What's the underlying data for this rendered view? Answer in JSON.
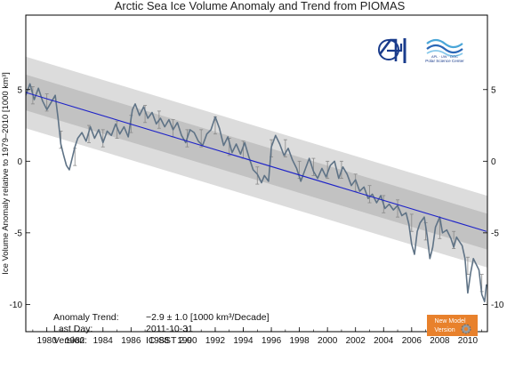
{
  "chart_data": {
    "type": "line",
    "title": "Arctic Sea Ice Volume Anomaly and Trend from PIOMAS",
    "ylabel": "Ice Volume Anomaly relative to 1979–2010 [1000 km³]",
    "xlabel": "",
    "xlim": [
      1979.0,
      2011.9
    ],
    "ylim": [
      -11.9,
      10.2
    ],
    "x_ticks": [
      1980,
      1982,
      1984,
      1986,
      1988,
      1990,
      1992,
      1994,
      1996,
      1998,
      2000,
      2002,
      2004,
      2006,
      2008,
      2010
    ],
    "y_ticks_left": [
      5,
      0,
      -5,
      -10
    ],
    "y_ticks_right": [
      5,
      0,
      -5,
      -10
    ],
    "grid": false,
    "trend": {
      "x": [
        1979.0,
        2011.83
      ],
      "y": [
        4.8,
        -4.9
      ]
    },
    "bands": [
      {
        "name": "outer",
        "offset": 2.5
      },
      {
        "name": "inner",
        "offset": 1.25
      }
    ],
    "series": [
      {
        "values": [
          [
            1979.0,
            4.6
          ],
          [
            1979.3,
            5.4
          ],
          [
            1979.6,
            4.3
          ],
          [
            1979.9,
            5.1
          ],
          [
            1980.2,
            4.2
          ],
          [
            1980.5,
            3.6
          ],
          [
            1980.8,
            4.1
          ],
          [
            1981.1,
            4.6
          ],
          [
            1981.3,
            3.0
          ],
          [
            1981.5,
            1.2
          ],
          [
            1981.7,
            0.4
          ],
          [
            1981.9,
            -0.3
          ],
          [
            1982.1,
            -0.6
          ],
          [
            1982.3,
            0.2
          ],
          [
            1982.5,
            1.0
          ],
          [
            1982.7,
            1.6
          ],
          [
            1983.0,
            2.0
          ],
          [
            1983.3,
            1.4
          ],
          [
            1983.6,
            2.4
          ],
          [
            1983.9,
            1.6
          ],
          [
            1984.2,
            2.2
          ],
          [
            1984.5,
            1.3
          ],
          [
            1984.8,
            2.1
          ],
          [
            1985.1,
            1.8
          ],
          [
            1985.4,
            2.6
          ],
          [
            1985.7,
            1.9
          ],
          [
            1986.0,
            2.4
          ],
          [
            1986.3,
            1.7
          ],
          [
            1986.6,
            3.6
          ],
          [
            1986.8,
            4.0
          ],
          [
            1987.1,
            3.2
          ],
          [
            1987.4,
            3.8
          ],
          [
            1987.7,
            3.0
          ],
          [
            1988.0,
            3.4
          ],
          [
            1988.3,
            2.6
          ],
          [
            1988.6,
            3.0
          ],
          [
            1988.9,
            2.4
          ],
          [
            1989.2,
            2.9
          ],
          [
            1989.5,
            2.2
          ],
          [
            1989.8,
            2.7
          ],
          [
            1990.1,
            1.8
          ],
          [
            1990.4,
            1.3
          ],
          [
            1990.7,
            2.2
          ],
          [
            1991.0,
            2.0
          ],
          [
            1991.3,
            1.4
          ],
          [
            1991.6,
            1.1
          ],
          [
            1991.9,
            1.9
          ],
          [
            1992.2,
            2.2
          ],
          [
            1992.5,
            3.1
          ],
          [
            1992.8,
            2.3
          ],
          [
            1993.1,
            1.1
          ],
          [
            1993.4,
            1.7
          ],
          [
            1993.7,
            0.6
          ],
          [
            1994.0,
            1.2
          ],
          [
            1994.3,
            0.5
          ],
          [
            1994.6,
            1.3
          ],
          [
            1994.9,
            0.3
          ],
          [
            1995.2,
            -0.6
          ],
          [
            1995.5,
            -0.9
          ],
          [
            1995.8,
            -1.5
          ],
          [
            1996.0,
            -1.0
          ],
          [
            1996.3,
            -1.4
          ],
          [
            1996.5,
            1.0
          ],
          [
            1996.8,
            1.8
          ],
          [
            1997.1,
            1.2
          ],
          [
            1997.4,
            0.4
          ],
          [
            1997.7,
            0.9
          ],
          [
            1998.0,
            0.1
          ],
          [
            1998.3,
            -0.5
          ],
          [
            1998.6,
            -1.4
          ],
          [
            1998.9,
            -0.6
          ],
          [
            1999.2,
            0.2
          ],
          [
            1999.5,
            -0.7
          ],
          [
            1999.8,
            -1.2
          ],
          [
            2000.1,
            -0.5
          ],
          [
            2000.4,
            -1.1
          ],
          [
            2000.7,
            -0.3
          ],
          [
            2001.0,
            0.0
          ],
          [
            2001.3,
            -1.2
          ],
          [
            2001.6,
            -0.4
          ],
          [
            2001.9,
            -0.9
          ],
          [
            2002.2,
            -1.7
          ],
          [
            2002.5,
            -1.3
          ],
          [
            2002.8,
            -2.1
          ],
          [
            2003.1,
            -1.8
          ],
          [
            2003.4,
            -2.6
          ],
          [
            2003.7,
            -2.3
          ],
          [
            2004.0,
            -2.9
          ],
          [
            2004.3,
            -2.4
          ],
          [
            2004.6,
            -3.3
          ],
          [
            2004.9,
            -3.0
          ],
          [
            2005.2,
            -3.4
          ],
          [
            2005.5,
            -3.1
          ],
          [
            2005.8,
            -3.8
          ],
          [
            2006.1,
            -3.6
          ],
          [
            2006.3,
            -4.4
          ],
          [
            2006.5,
            -5.8
          ],
          [
            2006.7,
            -6.5
          ],
          [
            2006.9,
            -4.9
          ],
          [
            2007.1,
            -4.3
          ],
          [
            2007.4,
            -3.9
          ],
          [
            2007.6,
            -5.2
          ],
          [
            2007.8,
            -6.8
          ],
          [
            2008.0,
            -6.0
          ],
          [
            2008.2,
            -4.6
          ],
          [
            2008.5,
            -3.9
          ],
          [
            2008.7,
            -5.0
          ],
          [
            2009.0,
            -4.8
          ],
          [
            2009.3,
            -5.4
          ],
          [
            2009.5,
            -6.0
          ],
          [
            2009.7,
            -5.3
          ],
          [
            2009.9,
            -5.6
          ],
          [
            2010.1,
            -5.9
          ],
          [
            2010.3,
            -6.8
          ],
          [
            2010.5,
            -9.2
          ],
          [
            2010.7,
            -7.8
          ],
          [
            2010.9,
            -6.8
          ],
          [
            2011.1,
            -7.2
          ],
          [
            2011.3,
            -7.6
          ],
          [
            2011.5,
            -9.3
          ],
          [
            2011.7,
            -9.8
          ],
          [
            2011.83,
            -8.6
          ]
        ]
      }
    ],
    "error_bars": [
      {
        "x": 1979.5,
        "y": 4.6,
        "err": 0.6
      },
      {
        "x": 1980.5,
        "y": 4.1,
        "err": 0.6
      },
      {
        "x": 1981.5,
        "y": 1.5,
        "err": 0.6
      },
      {
        "x": 1982.5,
        "y": 0.3,
        "err": 0.6
      },
      {
        "x": 1983.5,
        "y": 1.9,
        "err": 0.6
      },
      {
        "x": 1984.5,
        "y": 1.6,
        "err": 0.6
      },
      {
        "x": 1985.5,
        "y": 2.2,
        "err": 0.6
      },
      {
        "x": 1986.5,
        "y": 2.6,
        "err": 0.6
      },
      {
        "x": 1987.5,
        "y": 3.3,
        "err": 0.6
      },
      {
        "x": 1988.5,
        "y": 2.9,
        "err": 0.6
      },
      {
        "x": 1989.5,
        "y": 2.3,
        "err": 0.6
      },
      {
        "x": 1990.5,
        "y": 1.6,
        "err": 0.6
      },
      {
        "x": 1991.5,
        "y": 1.6,
        "err": 0.6
      },
      {
        "x": 1992.5,
        "y": 2.5,
        "err": 0.6
      },
      {
        "x": 1993.5,
        "y": 1.0,
        "err": 0.6
      },
      {
        "x": 1994.5,
        "y": 0.8,
        "err": 0.6
      },
      {
        "x": 1995.5,
        "y": -1.0,
        "err": 0.6
      },
      {
        "x": 1996.5,
        "y": 0.9,
        "err": 0.6
      },
      {
        "x": 1997.5,
        "y": 0.9,
        "err": 0.6
      },
      {
        "x": 1998.5,
        "y": -0.6,
        "err": 0.6
      },
      {
        "x": 1999.5,
        "y": -0.4,
        "err": 0.6
      },
      {
        "x": 2000.5,
        "y": -0.6,
        "err": 0.6
      },
      {
        "x": 2001.5,
        "y": -0.6,
        "err": 0.6
      },
      {
        "x": 2002.5,
        "y": -1.5,
        "err": 0.6
      },
      {
        "x": 2003.5,
        "y": -2.3,
        "err": 0.6
      },
      {
        "x": 2004.5,
        "y": -3.0,
        "err": 0.6
      },
      {
        "x": 2005.5,
        "y": -3.3,
        "err": 0.6
      },
      {
        "x": 2006.5,
        "y": -4.3,
        "err": 0.6
      },
      {
        "x": 2007.5,
        "y": -4.9,
        "err": 0.6
      },
      {
        "x": 2008.5,
        "y": -4.8,
        "err": 0.6
      },
      {
        "x": 2009.5,
        "y": -5.5,
        "err": 0.6
      },
      {
        "x": 2010.5,
        "y": -7.3,
        "err": 0.6
      },
      {
        "x": 2011.5,
        "y": -8.5,
        "err": 0.6
      }
    ],
    "colors": {
      "outer_band": "#dcdcdc",
      "inner_band": "#c2c2c2",
      "series": "#5f7386",
      "trend": "#1d22c8",
      "error_bar": "#888888",
      "badge": "#e8812c"
    }
  },
  "stats": {
    "trend_label": "Anomaly Trend:",
    "trend_value": "−2.9 ± 1.0 [1000 km³/Decade]",
    "lastday_label": "Last Day:",
    "lastday_value": "2011-10-31",
    "version_label": "Version:",
    "version_value": "IC-SST 2.0"
  },
  "logos": {
    "apl_icon": "apl-logo-icon",
    "psc_text": "Polar Science Center",
    "psc_small": "APL · UW · DOC"
  },
  "badge": {
    "line1": "New Model",
    "line2": "Version",
    "icon": "gear-icon"
  }
}
